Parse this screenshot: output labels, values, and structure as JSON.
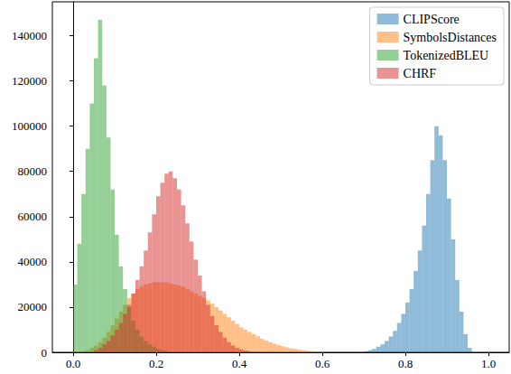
{
  "chart_data": {
    "type": "histogram",
    "xlim": [
      -0.05,
      1.05
    ],
    "xticks": [
      {
        "value": 0,
        "label": "0.0"
      },
      0.2,
      0.4,
      0.6,
      0.8,
      {
        "value": 1,
        "label": "1.0"
      }
    ],
    "ylim": [
      0,
      155000
    ],
    "yticks": [
      0,
      20000,
      40000,
      60000,
      80000,
      100000,
      120000,
      140000
    ],
    "grid": false,
    "legend": "upper right",
    "series": [
      {
        "name": "CLIPScore",
        "color": "#1f77b4",
        "bins": [
          0.7,
          0.71,
          0.72,
          0.73,
          0.74,
          0.75,
          0.76,
          0.77,
          0.78,
          0.79,
          0.8,
          0.81,
          0.82,
          0.83,
          0.84,
          0.85,
          0.86,
          0.87,
          0.88,
          0.89,
          0.9,
          0.91,
          0.92,
          0.93,
          0.94,
          0.95,
          0.96
        ],
        "values": [
          500,
          1000,
          1500,
          2500,
          3500,
          5000,
          7000,
          9500,
          13000,
          17000,
          22000,
          28000,
          36000,
          45000,
          56000,
          70000,
          85000,
          100000,
          96000,
          85000,
          68000,
          50000,
          32000,
          18000,
          8000,
          2000
        ]
      },
      {
        "name": "SymbolsDistances",
        "color": "#ff7f0e",
        "bins": [
          0.02,
          0.03,
          0.04,
          0.05,
          0.06,
          0.07,
          0.08,
          0.09,
          0.1,
          0.11,
          0.12,
          0.13,
          0.14,
          0.15,
          0.16,
          0.17,
          0.18,
          0.19,
          0.2,
          0.21,
          0.22,
          0.23,
          0.24,
          0.25,
          0.26,
          0.27,
          0.28,
          0.29,
          0.3,
          0.31,
          0.32,
          0.33,
          0.34,
          0.35,
          0.36,
          0.37,
          0.38,
          0.39,
          0.4,
          0.41,
          0.42,
          0.43,
          0.44,
          0.45,
          0.46,
          0.47,
          0.48,
          0.49,
          0.5,
          0.51,
          0.52,
          0.53,
          0.54,
          0.55,
          0.56,
          0.57,
          0.58,
          0.59,
          0.6,
          0.61,
          0.62,
          0.63,
          0.64,
          0.65
        ],
        "values": [
          500,
          1000,
          2000,
          3000,
          4500,
          6500,
          9000,
          12000,
          15000,
          18000,
          21000,
          24000,
          26000,
          28000,
          29000,
          30000,
          30500,
          31000,
          31000,
          31000,
          31000,
          30500,
          30000,
          29500,
          29000,
          28000,
          27000,
          26000,
          25000,
          24000,
          23000,
          21500,
          20000,
          18500,
          17000,
          15500,
          14000,
          12500,
          11000,
          10000,
          9000,
          8000,
          7000,
          6000,
          5200,
          4500,
          3800,
          3200,
          2700,
          2200,
          1800,
          1500,
          1200,
          900,
          700,
          500,
          400,
          300,
          200,
          150,
          100,
          60,
          40
        ]
      },
      {
        "name": "TokenizedBLEU",
        "color": "#2ca02c",
        "bins": [
          0.0,
          0.01,
          0.02,
          0.03,
          0.04,
          0.05,
          0.06,
          0.07,
          0.08,
          0.09,
          0.1,
          0.11,
          0.12,
          0.13,
          0.14,
          0.15,
          0.16,
          0.17,
          0.18,
          0.19,
          0.2,
          0.21,
          0.22,
          0.23
        ],
        "values": [
          30000,
          48000,
          70000,
          90000,
          110000,
          130000,
          147000,
          118000,
          95000,
          72000,
          52000,
          38000,
          28000,
          20000,
          14000,
          10000,
          7000,
          5000,
          3500,
          2500,
          1500,
          1000,
          600
        ]
      },
      {
        "name": "CHRF",
        "color": "#d62728",
        "bins": [
          0.05,
          0.06,
          0.07,
          0.08,
          0.09,
          0.1,
          0.11,
          0.12,
          0.13,
          0.14,
          0.15,
          0.16,
          0.17,
          0.18,
          0.19,
          0.2,
          0.21,
          0.22,
          0.23,
          0.24,
          0.25,
          0.26,
          0.27,
          0.28,
          0.29,
          0.3,
          0.31,
          0.32,
          0.33,
          0.34,
          0.35,
          0.36,
          0.37,
          0.38,
          0.39,
          0.4,
          0.41,
          0.42,
          0.43,
          0.44,
          0.45
        ],
        "values": [
          1000,
          2000,
          3500,
          5000,
          7500,
          10000,
          13000,
          17000,
          21000,
          26000,
          32000,
          38000,
          45000,
          53000,
          61000,
          69000,
          75000,
          79000,
          80000,
          77000,
          72000,
          65000,
          57000,
          49000,
          41000,
          34000,
          27000,
          21000,
          16000,
          12000,
          9000,
          6500,
          4500,
          3000,
          2000,
          1300,
          800,
          500,
          300,
          150
        ]
      }
    ]
  }
}
